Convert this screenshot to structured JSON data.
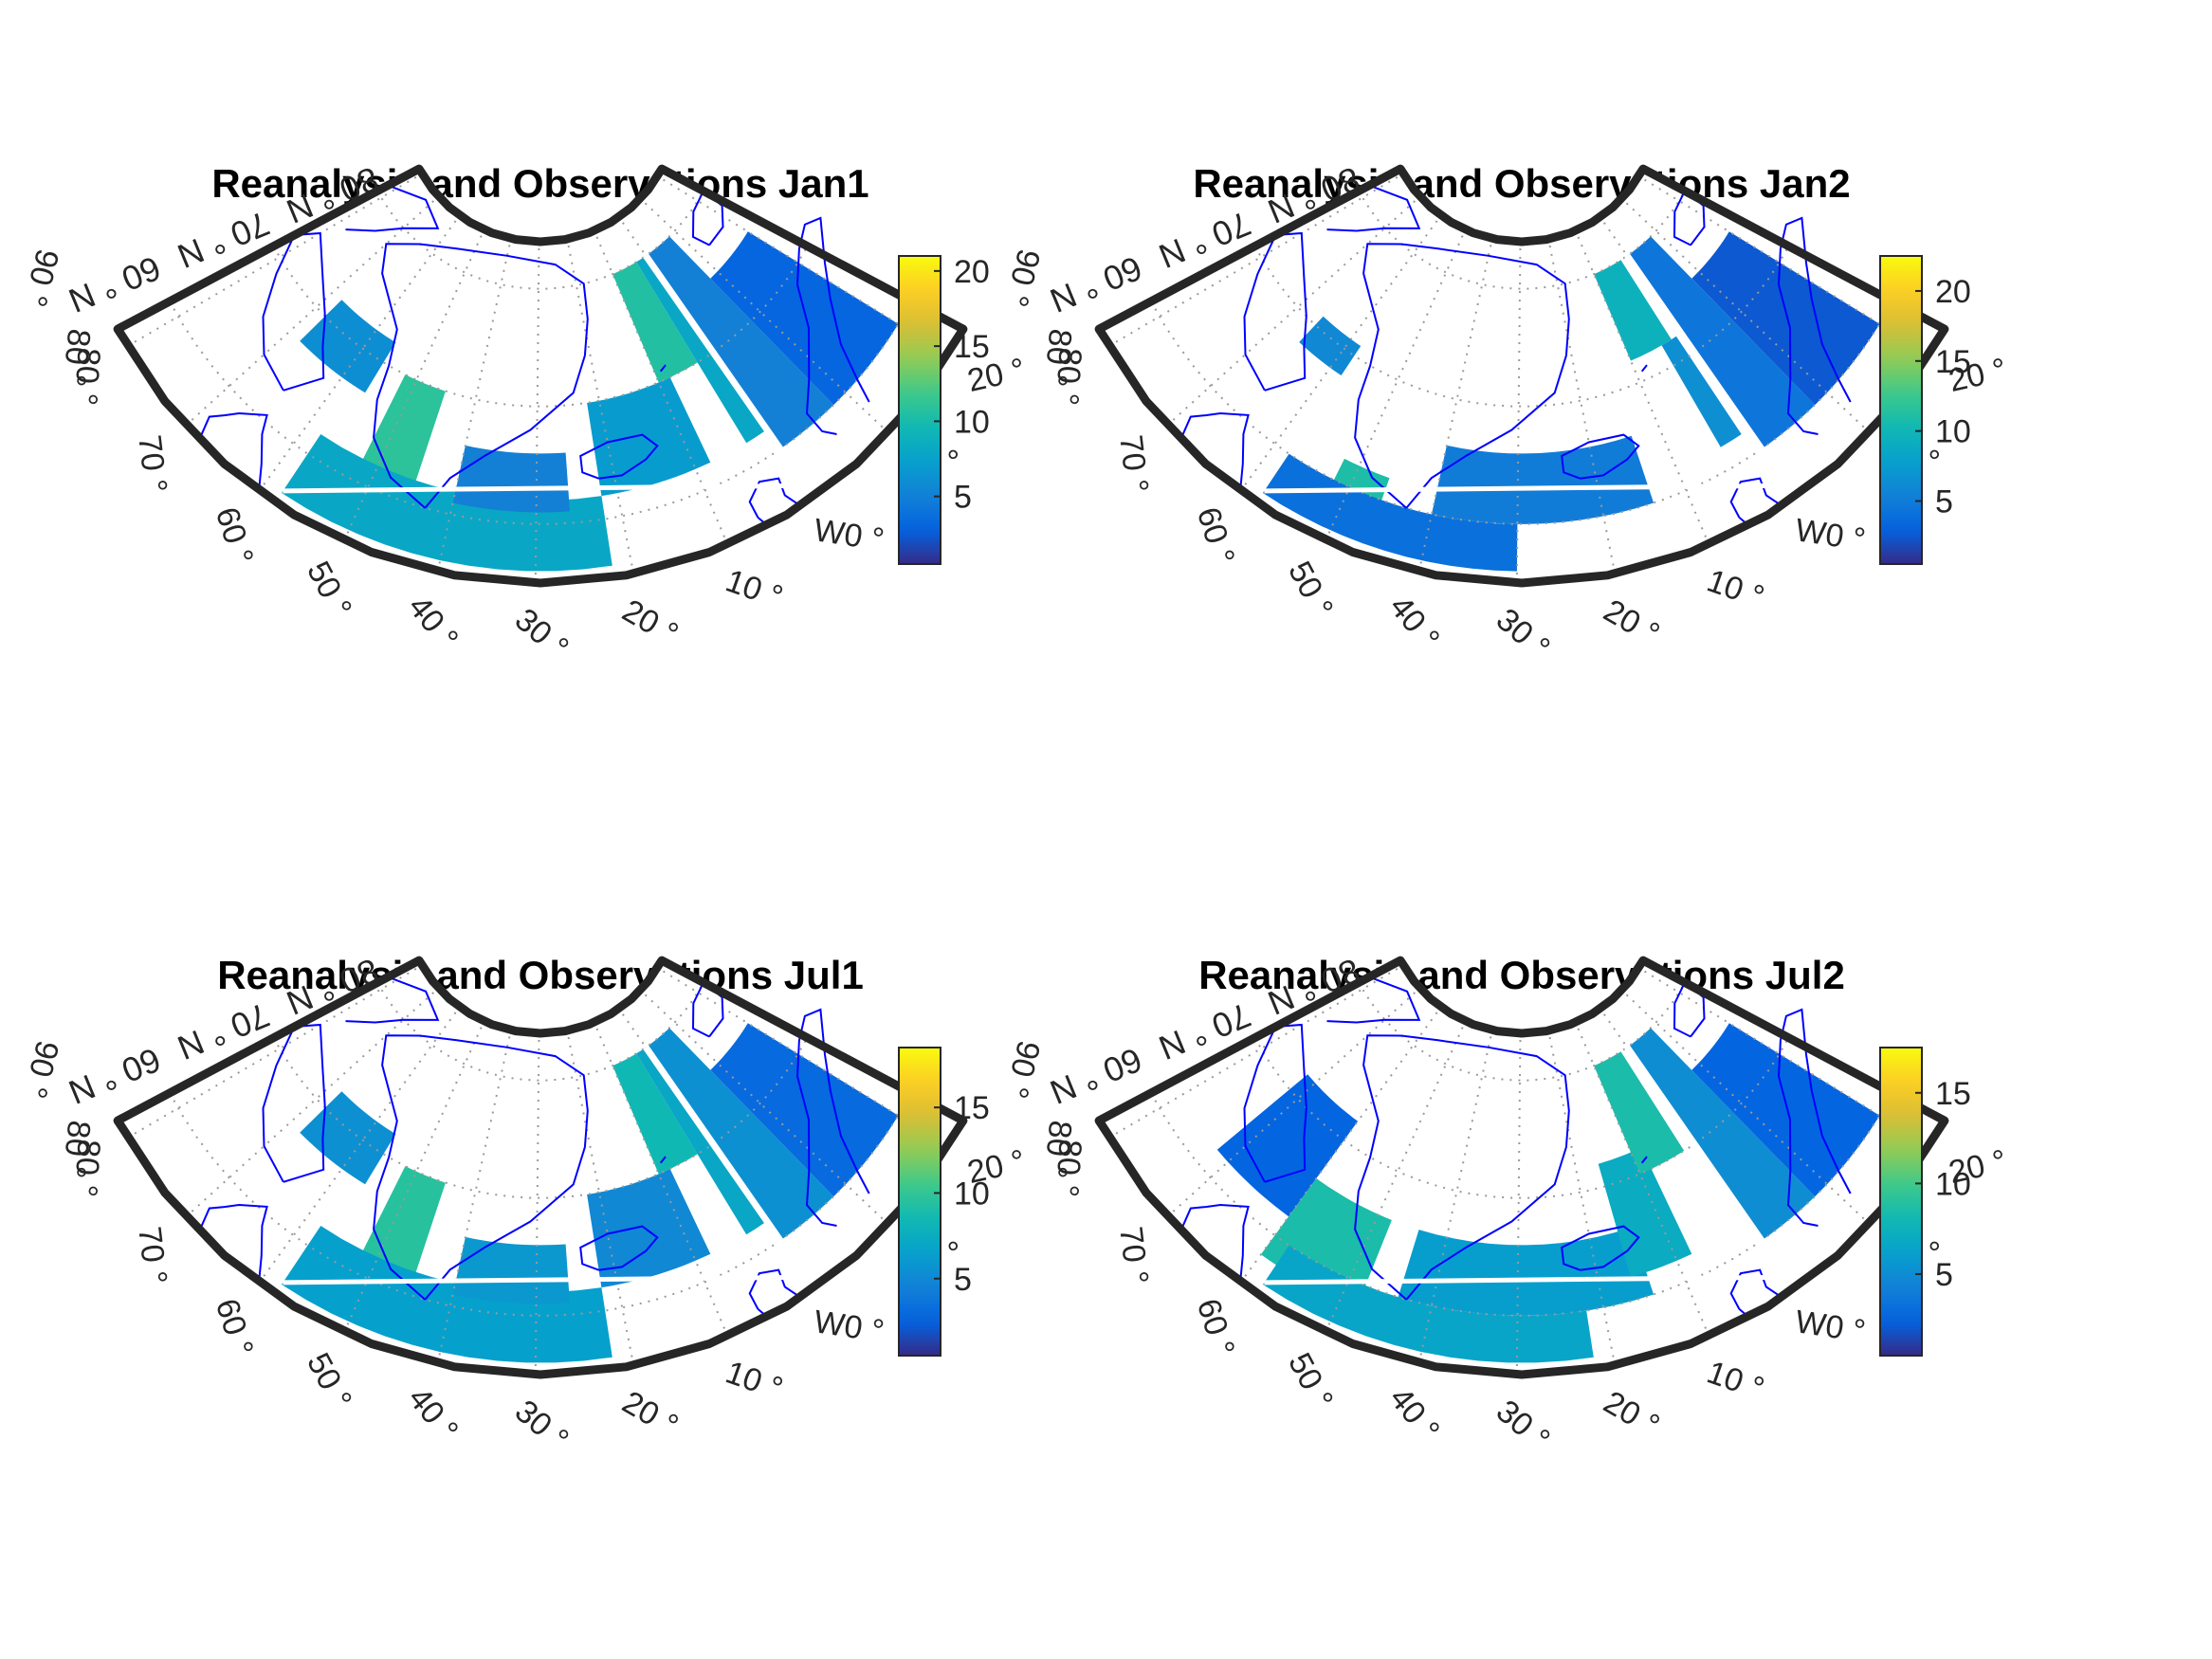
{
  "chart_data": [
    {
      "type": "heatmap",
      "title": "Reanalysis and Observations Jan1",
      "colorbar": {
        "colormap": "parula",
        "range": [
          0.5,
          21
        ],
        "ticks": [
          5,
          10,
          15,
          20
        ]
      },
      "parallel_labels": [
        "60 ° N",
        "70 ° N",
        "80 ° N"
      ],
      "meridian_labels": [
        "90 °",
        "80 °",
        "80 °",
        "70 °",
        "60 °",
        "50 °",
        "40 °",
        "30 °",
        "20 °",
        "10 °",
        "W0 °",
        "10 °",
        "20 °"
      ],
      "patches": [
        {
          "lat": [
            67,
            72
          ],
          "lon": [
            -68,
            -56
          ],
          "value": 6.0
        },
        {
          "lat": [
            59,
            70
          ],
          "lon": [
            -52,
            -45
          ],
          "value": 11.0
        },
        {
          "lat": [
            56,
            62
          ],
          "lon": [
            -58,
            -22
          ],
          "value": 8.0
        },
        {
          "lat": [
            61,
            66
          ],
          "lon": [
            -40,
            -26
          ],
          "value": 5.0
        },
        {
          "lat": [
            62,
            70
          ],
          "lon": [
            -22,
            -8
          ],
          "value": 7.0
        },
        {
          "lat": [
            70,
            80
          ],
          "lon": [
            -10,
            -3
          ],
          "value": 10.5
        },
        {
          "lat": [
            62,
            80
          ],
          "lon": [
            -3,
            0
          ],
          "value": 8.0
        },
        {
          "lat": [
            60,
            80
          ],
          "lon": [
            0,
            8
          ],
          "value": 5.0
        },
        {
          "lat": [
            60,
            75
          ],
          "lon": [
            8,
            20
          ],
          "value": 3.0
        }
      ]
    },
    {
      "type": "heatmap",
      "title": "Reanalysis and Observations Jan2",
      "colorbar": {
        "colormap": "parula",
        "range": [
          0.5,
          22.5
        ],
        "ticks": [
          5,
          10,
          15,
          20
        ]
      },
      "parallel_labels": [
        "60 ° N",
        "70 ° N",
        "80 ° N"
      ],
      "meridian_labels": [
        "90 °",
        "80 °",
        "80 °",
        "70 °",
        "60 °",
        "50 °",
        "40 °",
        "30 °",
        "20 °",
        "10 °",
        "W0 °",
        "10 °",
        "20 °"
      ],
      "patches": [
        {
          "lat": [
            68,
            71
          ],
          "lon": [
            -66,
            -58
          ],
          "value": 6.0
        },
        {
          "lat": [
            59,
            62
          ],
          "lon": [
            -52,
            -46
          ],
          "value": 11.0
        },
        {
          "lat": [
            56,
            60
          ],
          "lon": [
            -58,
            -30
          ],
          "value": 4.0
        },
        {
          "lat": [
            60,
            66
          ],
          "lon": [
            -40,
            -14
          ],
          "value": 5.0
        },
        {
          "lat": [
            72,
            80
          ],
          "lon": [
            -10,
            -2
          ],
          "value": 9.5
        },
        {
          "lat": [
            62,
            72
          ],
          "lon": [
            -4,
            -1
          ],
          "value": 6.5
        },
        {
          "lat": [
            60,
            80
          ],
          "lon": [
            0,
            8
          ],
          "value": 4.5
        },
        {
          "lat": [
            60,
            75
          ],
          "lon": [
            8,
            20
          ],
          "value": 2.5
        }
      ]
    },
    {
      "type": "heatmap",
      "title": "Reanalysis and Observations Jul1",
      "colorbar": {
        "colormap": "parula",
        "range": [
          0.5,
          18.5
        ],
        "ticks": [
          5,
          10,
          15
        ]
      },
      "parallel_labels": [
        "60 ° N",
        "70 ° N",
        "80 ° N"
      ],
      "meridian_labels": [
        "90 °",
        "80 °",
        "80 °",
        "70 °",
        "60 °",
        "50 °",
        "40 °",
        "30 °",
        "20 °",
        "10 °",
        "W0 °",
        "10 °",
        "20 °"
      ],
      "patches": [
        {
          "lat": [
            67,
            72
          ],
          "lon": [
            -68,
            -56
          ],
          "value": 5.5
        },
        {
          "lat": [
            59,
            70
          ],
          "lon": [
            -52,
            -45
          ],
          "value": 9.5
        },
        {
          "lat": [
            56,
            62
          ],
          "lon": [
            -58,
            -22
          ],
          "value": 6.5
        },
        {
          "lat": [
            61,
            66
          ],
          "lon": [
            -40,
            -26
          ],
          "value": 6.0
        },
        {
          "lat": [
            62,
            70
          ],
          "lon": [
            -22,
            -8
          ],
          "value": 5.0
        },
        {
          "lat": [
            70,
            80
          ],
          "lon": [
            -10,
            -3
          ],
          "value": 8.5
        },
        {
          "lat": [
            62,
            80
          ],
          "lon": [
            -3,
            0
          ],
          "value": 7.0
        },
        {
          "lat": [
            60,
            80
          ],
          "lon": [
            0,
            8
          ],
          "value": 5.5
        },
        {
          "lat": [
            60,
            75
          ],
          "lon": [
            8,
            20
          ],
          "value": 3.0
        }
      ]
    },
    {
      "type": "heatmap",
      "title": "Reanalysis and Observations Jul2",
      "colorbar": {
        "colormap": "parula",
        "range": [
          0.5,
          17.5
        ],
        "ticks": [
          5,
          10,
          15
        ]
      },
      "parallel_labels": [
        "60 ° N",
        "70 ° N",
        "80 ° N"
      ],
      "meridian_labels": [
        "90 °",
        "80 °",
        "80 °",
        "70 °",
        "60 °",
        "50 °",
        "40 °",
        "30 °",
        "20 °",
        "10 °",
        "W0 °",
        "10 °",
        "20 °"
      ],
      "patches": [
        {
          "lat": [
            62,
            72
          ],
          "lon": [
            -72,
            -60
          ],
          "value": 2.5
        },
        {
          "lat": [
            58,
            66
          ],
          "lon": [
            -60,
            -48
          ],
          "value": 8.5
        },
        {
          "lat": [
            56,
            60
          ],
          "lon": [
            -58,
            -22
          ],
          "value": 6.5
        },
        {
          "lat": [
            60,
            66
          ],
          "lon": [
            -44,
            -14
          ],
          "value": 6.0
        },
        {
          "lat": [
            62,
            72
          ],
          "lon": [
            -16,
            -8
          ],
          "value": 7.0
        },
        {
          "lat": [
            70,
            80
          ],
          "lon": [
            -10,
            -2
          ],
          "value": 8.5
        },
        {
          "lat": [
            60,
            80
          ],
          "lon": [
            0,
            8
          ],
          "value": 5.0
        },
        {
          "lat": [
            60,
            75
          ],
          "lon": [
            8,
            20
          ],
          "value": 2.5
        }
      ]
    }
  ]
}
